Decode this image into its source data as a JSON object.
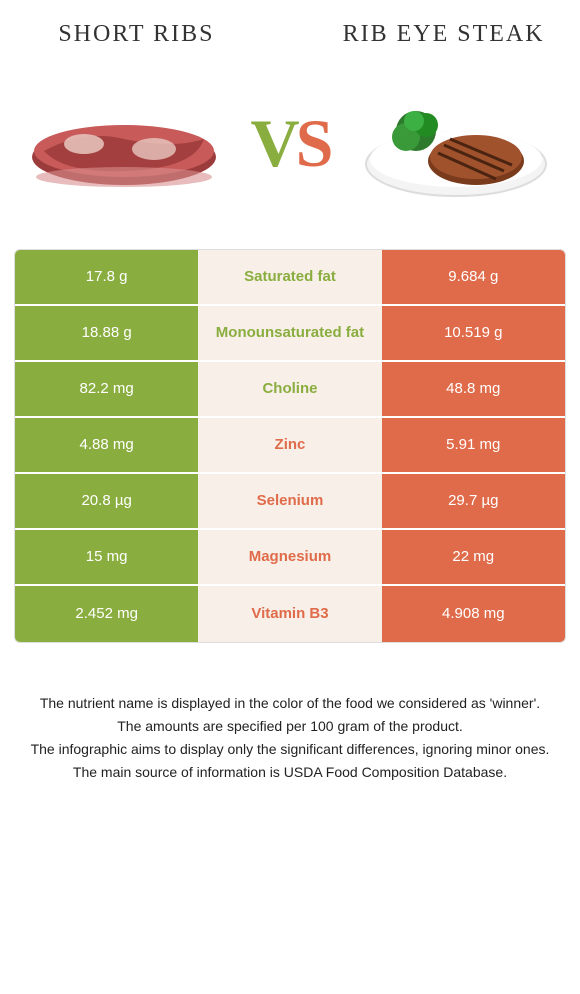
{
  "colors": {
    "green": "#8aad3f",
    "orange": "#e06b4a",
    "mid_bg": "#f8f0e8"
  },
  "header": {
    "left_title": "SHORT RIBS",
    "right_title": "RIB EYE STEAK",
    "vs_v": "V",
    "vs_s": "S"
  },
  "nutrients": [
    {
      "label": "Saturated fat",
      "left": "17.8 g",
      "right": "9.684 g",
      "winner": "left"
    },
    {
      "label": "Monounsaturated fat",
      "left": "18.88 g",
      "right": "10.519 g",
      "winner": "left"
    },
    {
      "label": "Choline",
      "left": "82.2 mg",
      "right": "48.8 mg",
      "winner": "left"
    },
    {
      "label": "Zinc",
      "left": "4.88 mg",
      "right": "5.91 mg",
      "winner": "right"
    },
    {
      "label": "Selenium",
      "left": "20.8 µg",
      "right": "29.7 µg",
      "winner": "right"
    },
    {
      "label": "Magnesium",
      "left": "15 mg",
      "right": "22 mg",
      "winner": "right"
    },
    {
      "label": "Vitamin B3",
      "left": "2.452 mg",
      "right": "4.908 mg",
      "winner": "right"
    }
  ],
  "footnotes": [
    "The nutrient name is displayed in the color of the food we considered as 'winner'.",
    "The amounts are specified per 100 gram of the product.",
    "The infographic aims to display only the significant differences, ignoring minor ones.",
    "The main source of information is USDA Food Composition Database."
  ]
}
